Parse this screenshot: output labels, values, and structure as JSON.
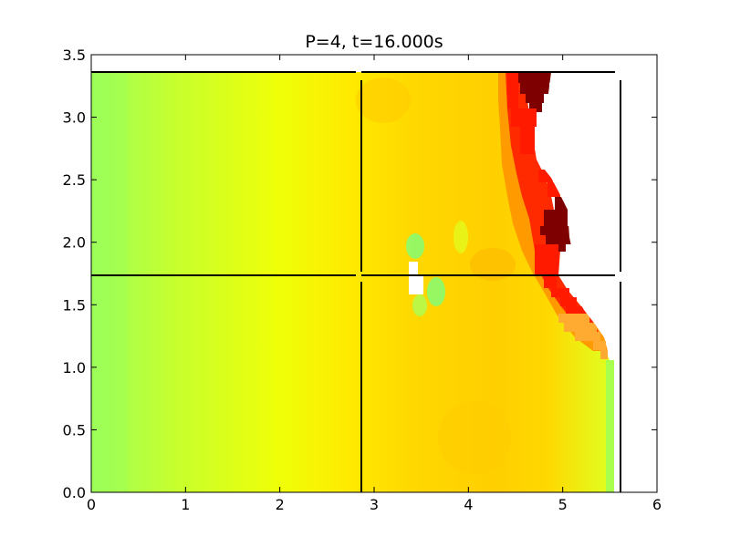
{
  "chart_data": {
    "type": "heatmap",
    "title": "P=4, t=16.000s",
    "xlabel": "",
    "ylabel": "",
    "xlim": [
      0,
      6
    ],
    "ylim": [
      0,
      3.5
    ],
    "x_ticks": [
      "0",
      "1",
      "2",
      "3",
      "4",
      "5",
      "6"
    ],
    "y_ticks": [
      "0.0",
      "0.5",
      "1.0",
      "1.5",
      "2.0",
      "2.5",
      "3.0",
      "3.5"
    ],
    "colormap": "jet",
    "grid": false,
    "partition_lines": {
      "horizontal_y": [
        1.73,
        3.36
      ],
      "vertical_x": [
        2.85,
        5.6
      ]
    },
    "colors": {
      "green": "#9cff5a",
      "yellow": "#ffff00",
      "orange": "#ffd400",
      "red": "#ff2000",
      "darkred": "#800000"
    }
  }
}
